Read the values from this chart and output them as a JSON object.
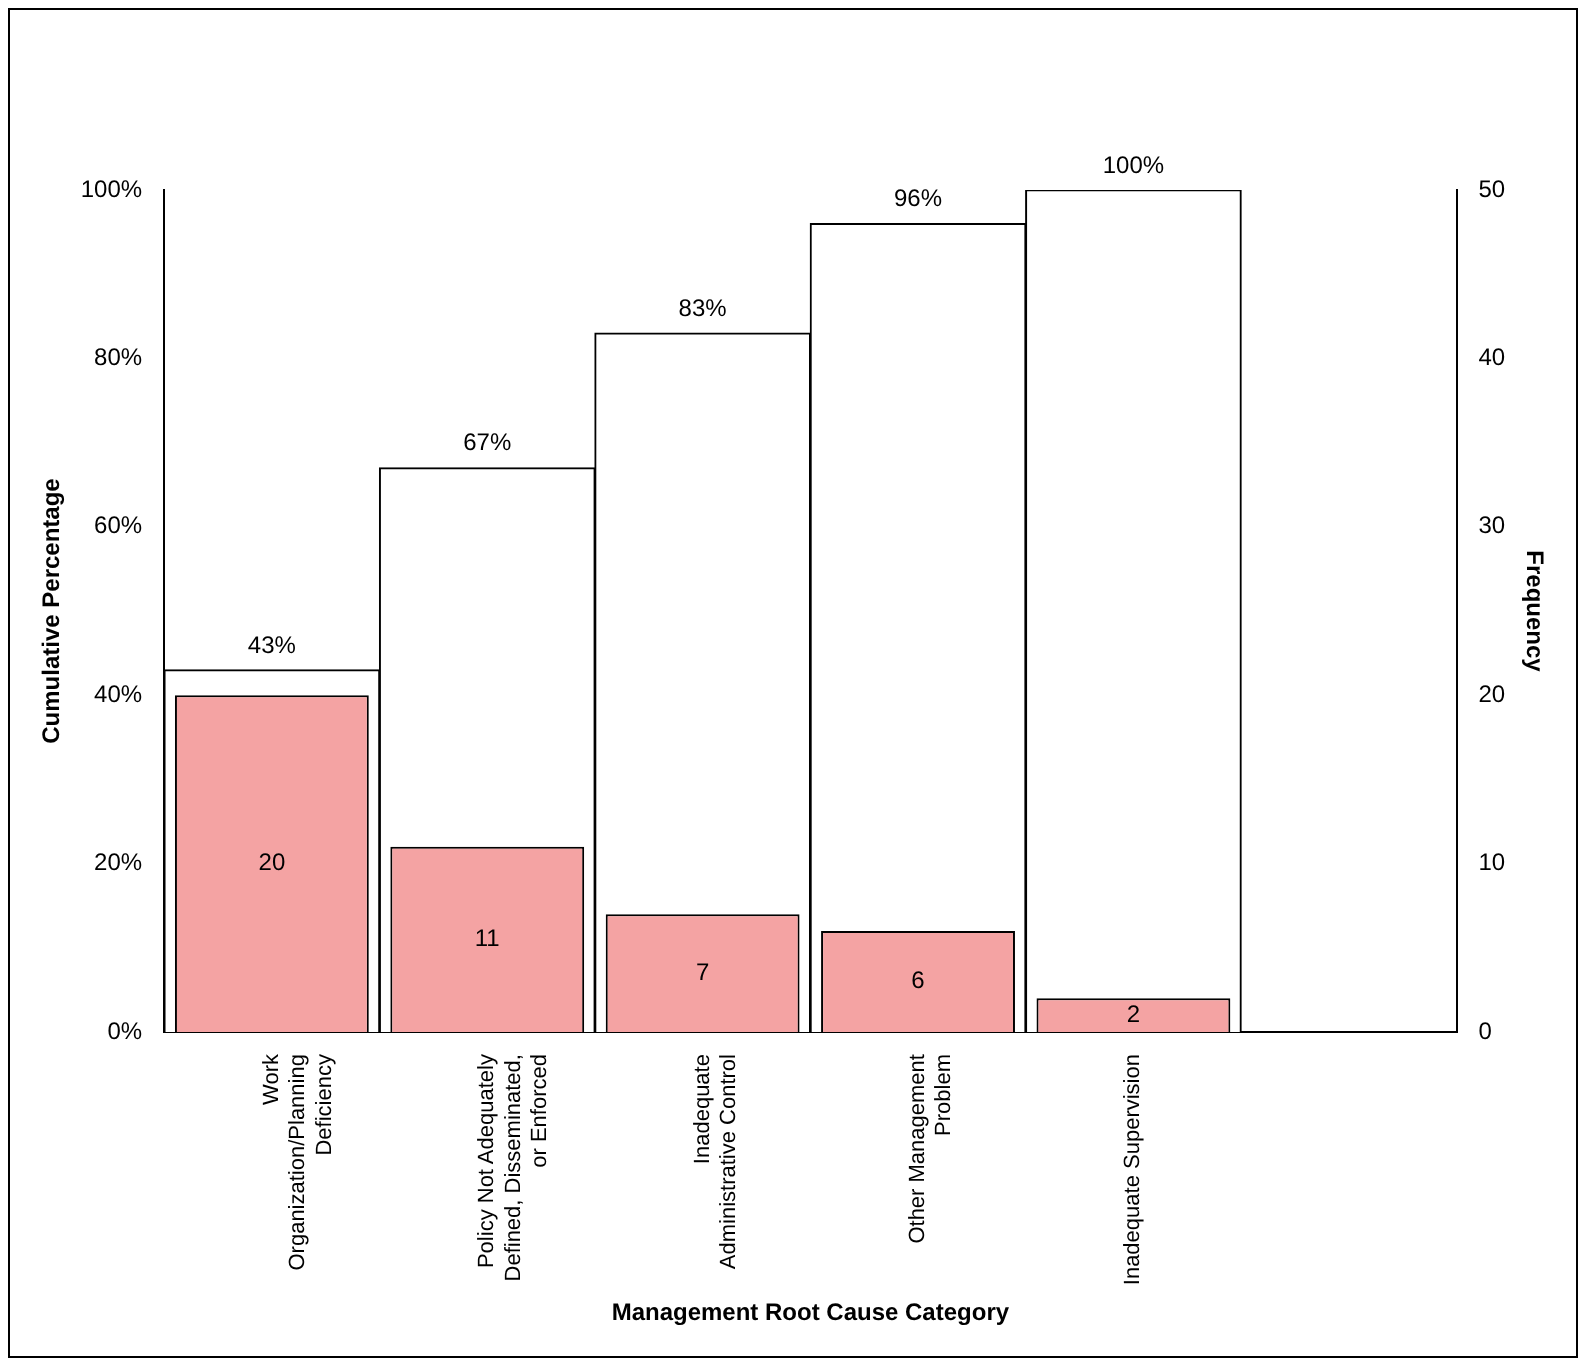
{
  "chart_data": {
    "type": "bar",
    "xlabel": "Management Root Cause Category",
    "ylabel": "Cumulative Percentage",
    "y2label": "Frequency",
    "categories": [
      "Work Organization/Planning Deficiency",
      "Policy Not Adequately Defined, Disseminated, or Enforced",
      "Inadequate Administrative Control",
      "Other Management Problem",
      "Inadequate Supervision",
      null
    ],
    "series": [
      {
        "color": "#ffffff",
        "values": [
          43,
          67,
          83,
          96,
          100,
          null
        ],
        "value_labels": [
          "43%",
          "67%",
          "83%",
          "96%",
          "100%",
          null
        ]
      },
      {
        "color": "#f4a3a3",
        "axis": "y2",
        "values": [
          20,
          11,
          7,
          6,
          2,
          null
        ],
        "value_labels": [
          "20",
          "11",
          "7",
          "6",
          "2",
          null
        ]
      }
    ],
    "ylim": [
      0,
      100
    ],
    "yticks": [
      {
        "value": 0,
        "label": "0%"
      },
      {
        "value": 20,
        "label": "20%"
      },
      {
        "value": 40,
        "label": "40%"
      },
      {
        "value": 60,
        "label": "60%"
      },
      {
        "value": 80,
        "label": "80%"
      },
      {
        "value": 100,
        "label": "100%"
      }
    ],
    "y2lim": [
      0,
      50
    ],
    "y2ticks": [
      0,
      10,
      20,
      30,
      40,
      50
    ],
    "grid": false,
    "legend": false
  }
}
